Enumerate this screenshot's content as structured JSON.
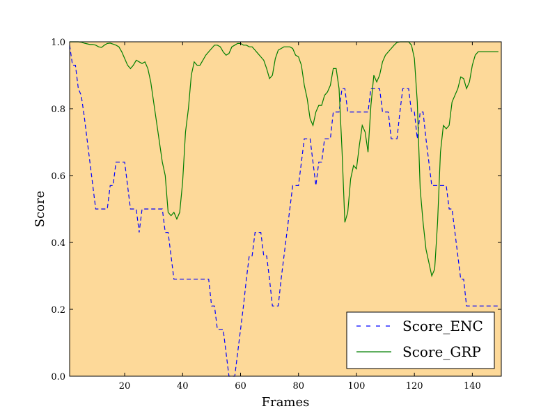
{
  "chart_data": {
    "type": "line",
    "xlabel": "Frames",
    "ylabel": "Score",
    "xlim": [
      1,
      150
    ],
    "ylim": [
      0,
      1.0
    ],
    "xticks": [
      20,
      40,
      60,
      80,
      100,
      120,
      140
    ],
    "xtick_labels": [
      "20",
      "40",
      "60",
      "80",
      "100",
      "120",
      "140"
    ],
    "yticks": [
      0.0,
      0.2,
      0.4,
      0.6,
      0.8,
      1.0
    ],
    "ytick_labels": [
      "0.0",
      "0.2",
      "0.4",
      "0.6",
      "0.8",
      "1.0"
    ],
    "grid": false,
    "legend_position": "lower-right",
    "background_color": "#fdd999",
    "series": [
      {
        "name": "Score_ENC",
        "color": "#0000ff",
        "style": "dashed",
        "points": [
          [
            1,
            0.99
          ],
          [
            2,
            0.93
          ],
          [
            3,
            0.93
          ],
          [
            4,
            0.86
          ],
          [
            5,
            0.84
          ],
          [
            6,
            0.78
          ],
          [
            7,
            0.71
          ],
          [
            8,
            0.64
          ],
          [
            9,
            0.57
          ],
          [
            10,
            0.5
          ],
          [
            11,
            0.5
          ],
          [
            12,
            0.5
          ],
          [
            13,
            0.5
          ],
          [
            14,
            0.5
          ],
          [
            15,
            0.57
          ],
          [
            16,
            0.57
          ],
          [
            17,
            0.64
          ],
          [
            18,
            0.64
          ],
          [
            19,
            0.64
          ],
          [
            20,
            0.64
          ],
          [
            21,
            0.57
          ],
          [
            22,
            0.5
          ],
          [
            23,
            0.5
          ],
          [
            24,
            0.5
          ],
          [
            25,
            0.43
          ],
          [
            26,
            0.5
          ],
          [
            27,
            0.5
          ],
          [
            28,
            0.5
          ],
          [
            29,
            0.5
          ],
          [
            30,
            0.5
          ],
          [
            31,
            0.5
          ],
          [
            32,
            0.5
          ],
          [
            33,
            0.5
          ],
          [
            34,
            0.43
          ],
          [
            35,
            0.43
          ],
          [
            36,
            0.36
          ],
          [
            37,
            0.29
          ],
          [
            38,
            0.29
          ],
          [
            39,
            0.29
          ],
          [
            40,
            0.29
          ],
          [
            41,
            0.29
          ],
          [
            42,
            0.29
          ],
          [
            43,
            0.29
          ],
          [
            44,
            0.29
          ],
          [
            45,
            0.29
          ],
          [
            46,
            0.29
          ],
          [
            47,
            0.29
          ],
          [
            48,
            0.29
          ],
          [
            49,
            0.29
          ],
          [
            50,
            0.21
          ],
          [
            51,
            0.21
          ],
          [
            52,
            0.14
          ],
          [
            53,
            0.14
          ],
          [
            54,
            0.14
          ],
          [
            55,
            0.07
          ],
          [
            56,
            0.0
          ],
          [
            57,
            0.0
          ],
          [
            58,
            0.0
          ],
          [
            59,
            0.07
          ],
          [
            60,
            0.14
          ],
          [
            61,
            0.21
          ],
          [
            62,
            0.29
          ],
          [
            63,
            0.36
          ],
          [
            64,
            0.36
          ],
          [
            65,
            0.43
          ],
          [
            66,
            0.43
          ],
          [
            67,
            0.43
          ],
          [
            68,
            0.36
          ],
          [
            69,
            0.36
          ],
          [
            70,
            0.29
          ],
          [
            71,
            0.21
          ],
          [
            72,
            0.21
          ],
          [
            73,
            0.21
          ],
          [
            74,
            0.29
          ],
          [
            75,
            0.36
          ],
          [
            76,
            0.43
          ],
          [
            77,
            0.5
          ],
          [
            78,
            0.57
          ],
          [
            79,
            0.57
          ],
          [
            80,
            0.57
          ],
          [
            81,
            0.64
          ],
          [
            82,
            0.71
          ],
          [
            83,
            0.71
          ],
          [
            84,
            0.71
          ],
          [
            85,
            0.64
          ],
          [
            86,
            0.57
          ],
          [
            87,
            0.64
          ],
          [
            88,
            0.64
          ],
          [
            89,
            0.71
          ],
          [
            90,
            0.71
          ],
          [
            91,
            0.71
          ],
          [
            92,
            0.79
          ],
          [
            93,
            0.79
          ],
          [
            94,
            0.79
          ],
          [
            95,
            0.86
          ],
          [
            96,
            0.86
          ],
          [
            97,
            0.79
          ],
          [
            98,
            0.79
          ],
          [
            99,
            0.79
          ],
          [
            100,
            0.79
          ],
          [
            101,
            0.79
          ],
          [
            102,
            0.79
          ],
          [
            103,
            0.79
          ],
          [
            104,
            0.79
          ],
          [
            105,
            0.86
          ],
          [
            106,
            0.86
          ],
          [
            107,
            0.86
          ],
          [
            108,
            0.86
          ],
          [
            109,
            0.79
          ],
          [
            110,
            0.79
          ],
          [
            111,
            0.79
          ],
          [
            112,
            0.71
          ],
          [
            113,
            0.71
          ],
          [
            114,
            0.71
          ],
          [
            115,
            0.79
          ],
          [
            116,
            0.86
          ],
          [
            117,
            0.86
          ],
          [
            118,
            0.86
          ],
          [
            119,
            0.79
          ],
          [
            120,
            0.79
          ],
          [
            121,
            0.71
          ],
          [
            122,
            0.79
          ],
          [
            123,
            0.79
          ],
          [
            124,
            0.71
          ],
          [
            125,
            0.64
          ],
          [
            126,
            0.57
          ],
          [
            127,
            0.57
          ],
          [
            128,
            0.57
          ],
          [
            129,
            0.57
          ],
          [
            130,
            0.57
          ],
          [
            131,
            0.57
          ],
          [
            132,
            0.5
          ],
          [
            133,
            0.5
          ],
          [
            134,
            0.43
          ],
          [
            135,
            0.36
          ],
          [
            136,
            0.29
          ],
          [
            137,
            0.29
          ],
          [
            138,
            0.21
          ],
          [
            139,
            0.21
          ],
          [
            140,
            0.21
          ],
          [
            141,
            0.21
          ],
          [
            142,
            0.21
          ],
          [
            143,
            0.21
          ],
          [
            144,
            0.21
          ],
          [
            145,
            0.21
          ],
          [
            146,
            0.21
          ],
          [
            147,
            0.21
          ],
          [
            148,
            0.21
          ],
          [
            149,
            0.21
          ]
        ]
      },
      {
        "name": "Score_GRP",
        "color": "#007f00",
        "style": "solid",
        "points": [
          [
            1,
            1.0
          ],
          [
            2,
            1.0
          ],
          [
            3,
            1.0
          ],
          [
            4,
            1.0
          ],
          [
            5,
            0.999
          ],
          [
            6,
            0.996
          ],
          [
            7,
            0.994
          ],
          [
            8,
            0.992
          ],
          [
            9,
            0.992
          ],
          [
            10,
            0.99
          ],
          [
            11,
            0.985
          ],
          [
            12,
            0.983
          ],
          [
            13,
            0.99
          ],
          [
            14,
            0.995
          ],
          [
            15,
            0.996
          ],
          [
            16,
            0.993
          ],
          [
            17,
            0.99
          ],
          [
            18,
            0.985
          ],
          [
            19,
            0.97
          ],
          [
            20,
            0.95
          ],
          [
            21,
            0.93
          ],
          [
            22,
            0.92
          ],
          [
            23,
            0.93
          ],
          [
            24,
            0.945
          ],
          [
            25,
            0.94
          ],
          [
            26,
            0.935
          ],
          [
            27,
            0.94
          ],
          [
            28,
            0.92
          ],
          [
            29,
            0.88
          ],
          [
            30,
            0.82
          ],
          [
            31,
            0.76
          ],
          [
            32,
            0.7
          ],
          [
            33,
            0.64
          ],
          [
            34,
            0.6
          ],
          [
            35,
            0.49
          ],
          [
            36,
            0.48
          ],
          [
            37,
            0.49
          ],
          [
            38,
            0.47
          ],
          [
            39,
            0.49
          ],
          [
            40,
            0.58
          ],
          [
            41,
            0.73
          ],
          [
            42,
            0.8
          ],
          [
            43,
            0.9
          ],
          [
            44,
            0.94
          ],
          [
            45,
            0.93
          ],
          [
            46,
            0.93
          ],
          [
            47,
            0.945
          ],
          [
            48,
            0.96
          ],
          [
            49,
            0.97
          ],
          [
            50,
            0.98
          ],
          [
            51,
            0.99
          ],
          [
            52,
            0.99
          ],
          [
            53,
            0.985
          ],
          [
            54,
            0.97
          ],
          [
            55,
            0.96
          ],
          [
            56,
            0.965
          ],
          [
            57,
            0.985
          ],
          [
            58,
            0.99
          ],
          [
            59,
            0.995
          ],
          [
            60,
            0.995
          ],
          [
            61,
            0.99
          ],
          [
            62,
            0.99
          ],
          [
            63,
            0.985
          ],
          [
            64,
            0.985
          ],
          [
            65,
            0.975
          ],
          [
            66,
            0.965
          ],
          [
            67,
            0.955
          ],
          [
            68,
            0.945
          ],
          [
            69,
            0.92
          ],
          [
            70,
            0.89
          ],
          [
            71,
            0.9
          ],
          [
            72,
            0.95
          ],
          [
            73,
            0.975
          ],
          [
            74,
            0.98
          ],
          [
            75,
            0.985
          ],
          [
            76,
            0.985
          ],
          [
            77,
            0.985
          ],
          [
            78,
            0.98
          ],
          [
            79,
            0.96
          ],
          [
            80,
            0.955
          ],
          [
            81,
            0.93
          ],
          [
            82,
            0.87
          ],
          [
            83,
            0.83
          ],
          [
            84,
            0.77
          ],
          [
            85,
            0.75
          ],
          [
            86,
            0.79
          ],
          [
            87,
            0.81
          ],
          [
            88,
            0.81
          ],
          [
            89,
            0.84
          ],
          [
            90,
            0.85
          ],
          [
            91,
            0.87
          ],
          [
            92,
            0.92
          ],
          [
            93,
            0.92
          ],
          [
            94,
            0.86
          ],
          [
            95,
            0.68
          ],
          [
            96,
            0.46
          ],
          [
            97,
            0.49
          ],
          [
            98,
            0.59
          ],
          [
            99,
            0.63
          ],
          [
            100,
            0.62
          ],
          [
            101,
            0.69
          ],
          [
            102,
            0.75
          ],
          [
            103,
            0.73
          ],
          [
            104,
            0.67
          ],
          [
            105,
            0.81
          ],
          [
            106,
            0.9
          ],
          [
            107,
            0.88
          ],
          [
            108,
            0.9
          ],
          [
            109,
            0.94
          ],
          [
            110,
            0.96
          ],
          [
            111,
            0.97
          ],
          [
            112,
            0.98
          ],
          [
            113,
            0.99
          ],
          [
            114,
            0.998
          ],
          [
            115,
            1.0
          ],
          [
            116,
            1.0
          ],
          [
            117,
            1.0
          ],
          [
            118,
            1.0
          ],
          [
            119,
            0.99
          ],
          [
            120,
            0.95
          ],
          [
            121,
            0.82
          ],
          [
            122,
            0.56
          ],
          [
            123,
            0.46
          ],
          [
            124,
            0.38
          ],
          [
            125,
            0.34
          ],
          [
            126,
            0.3
          ],
          [
            127,
            0.32
          ],
          [
            128,
            0.46
          ],
          [
            129,
            0.67
          ],
          [
            130,
            0.75
          ],
          [
            131,
            0.74
          ],
          [
            132,
            0.75
          ],
          [
            133,
            0.82
          ],
          [
            134,
            0.84
          ],
          [
            135,
            0.86
          ],
          [
            136,
            0.895
          ],
          [
            137,
            0.89
          ],
          [
            138,
            0.86
          ],
          [
            139,
            0.88
          ],
          [
            140,
            0.93
          ],
          [
            141,
            0.96
          ],
          [
            142,
            0.97
          ],
          [
            143,
            0.97
          ],
          [
            144,
            0.97
          ],
          [
            145,
            0.97
          ],
          [
            146,
            0.97
          ],
          [
            147,
            0.97
          ],
          [
            148,
            0.97
          ],
          [
            149,
            0.97
          ]
        ]
      }
    ]
  }
}
